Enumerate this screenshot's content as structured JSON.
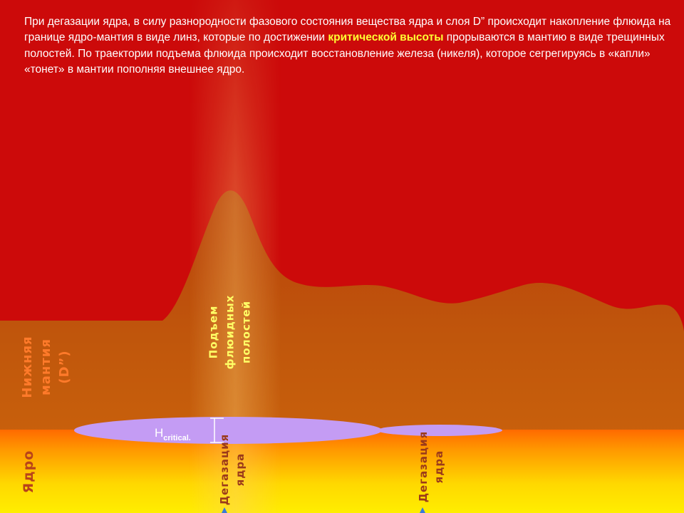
{
  "caption": {
    "part1": "При дегазации ядра, в силу разнородности фазового состояния вещества ядра и слоя D” происходит накопление флюида на границе ядро-мантия в виде линз, которые по достижении ",
    "highlight": "критической высоты",
    "part2": " прорываются в мантию в виде трещинных полостей.  По траектории подъема флюида происходит восстановление железа (никеля), которое сегрегируясь в «капли» «тонет» в мантии пополняя внешнее ядро."
  },
  "labels": {
    "lower_mantle_line1": "Нижняя",
    "lower_mantle_line2": "мантия",
    "lower_mantle_line3": "(D”)",
    "core": "Ядро",
    "rise_line1": "Подъем",
    "rise_line2": "флюидных",
    "rise_line3": "полостей",
    "degas1_line1": "Дегазация",
    "degas1_line2": "ядра",
    "degas2_line1": "Дегазация",
    "degas2_line2": "ядра",
    "h_critical_main": "H",
    "h_critical_sub": "critical."
  },
  "colors": {
    "background": "#cc0a0a",
    "mantle": "#c0520a",
    "core_top": "#ff6a00",
    "core_bottom": "#ffee00",
    "lens": "#c49cf4",
    "caption_text": "#ffffff",
    "highlight_text": "#ffff33",
    "mantle_label": "#ff7a2a",
    "rise_label": "#ffff66",
    "degas_label": "#9b3a1a",
    "core_label": "#b8431a"
  }
}
